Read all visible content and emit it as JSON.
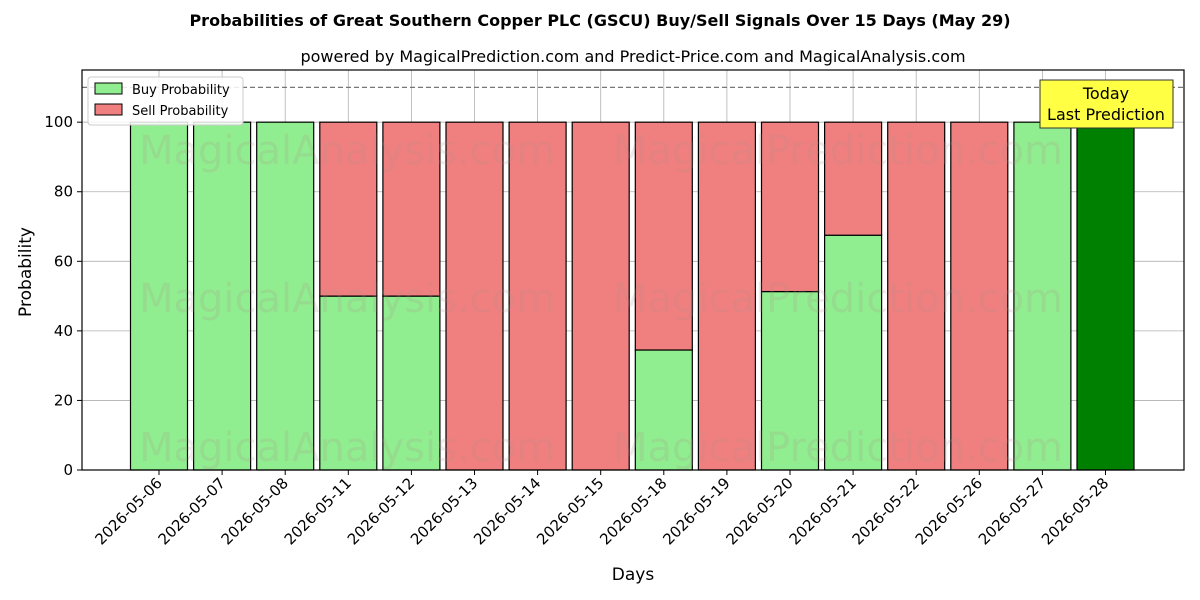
{
  "chart_data": {
    "type": "bar",
    "title": "Probabilities of Great Southern Copper PLC (GSCU) Buy/Sell Signals Over 15 Days (May 29)",
    "subtitle": "powered by MagicalPrediction.com and Predict-Price.com and MagicalAnalysis.com",
    "xlabel": "Days",
    "ylabel": "Probability",
    "ylim": [
      0,
      115
    ],
    "yticks": [
      0,
      20,
      40,
      60,
      80,
      100
    ],
    "reference_line": 110,
    "grid": true,
    "legend_placement": "top-left",
    "categories": [
      "2026-05-06",
      "2026-05-07",
      "2026-05-08",
      "2026-05-11",
      "2026-05-12",
      "2026-05-13",
      "2026-05-14",
      "2026-05-15",
      "2026-05-18",
      "2026-05-19",
      "2026-05-20",
      "2026-05-21",
      "2026-05-22",
      "2026-05-26",
      "2026-05-27",
      "2026-05-28"
    ],
    "series": [
      {
        "name": "Buy Probability",
        "color": "#90ee90",
        "values": [
          100,
          100,
          100,
          50,
          50,
          0,
          0,
          0,
          34.5,
          0,
          51.3,
          67.5,
          0,
          0,
          100,
          100
        ]
      },
      {
        "name": "Sell Probability",
        "color": "#f08080",
        "values": [
          0,
          0,
          0,
          50,
          50,
          100,
          100,
          100,
          65.5,
          100,
          48.7,
          32.5,
          100,
          100,
          0,
          0
        ]
      }
    ],
    "highlight": {
      "index": 15,
      "color": "#008000"
    },
    "annotation": {
      "line1": "Today",
      "line2": "Last Prediction",
      "color": "#ffff44"
    },
    "watermarks": [
      "MagicalAnalysis.com",
      "MagicalPrediction.com"
    ]
  }
}
